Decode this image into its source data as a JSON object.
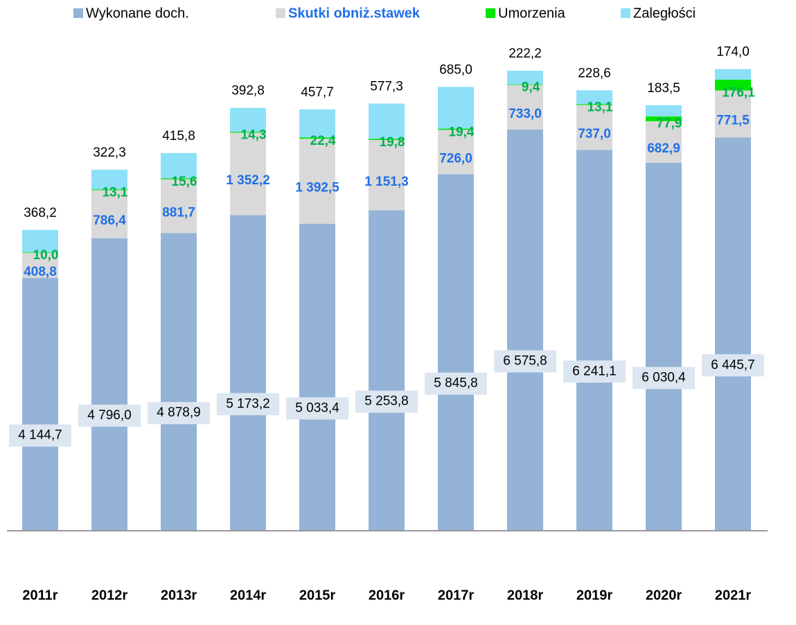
{
  "chart_data": {
    "type": "stacked_bar",
    "categories": [
      "2011r",
      "2012r",
      "2013r",
      "2014r",
      "2015r",
      "2016r",
      "2017r",
      "2018r",
      "2019r",
      "2020r",
      "2021r"
    ],
    "ylim": [
      0,
      8700
    ],
    "series": [
      {
        "name": "Wykonane doch.",
        "color": "#95b3d7",
        "values": [
          4144.7,
          4796.0,
          4878.9,
          5173.2,
          5033.4,
          5253.8,
          5845.8,
          6575.8,
          6241.1,
          6030.4,
          6445.7
        ],
        "value_labels": [
          "4 144,7",
          "4 796,0",
          "4 878,9",
          "5 173,2",
          "5 033,4",
          "5 253,8",
          "5 845,8",
          "6 575,8",
          "6 241,1",
          "6 030,4",
          "6 445,7"
        ]
      },
      {
        "name": "Skutki obniż.stawek",
        "color": "#d9d9d9",
        "values": [
          408.8,
          786.4,
          881.7,
          1352.2,
          1392.5,
          1151.3,
          726.0,
          733.0,
          737.0,
          682.9,
          771.5
        ],
        "value_labels": [
          "408,8",
          "786,4",
          "881,7",
          "1 352,2",
          "1 392,5",
          "1 151,3",
          "726,0",
          "733,0",
          "737,0",
          "682,9",
          "771,5"
        ]
      },
      {
        "name": "Umorzenia",
        "color": "#00e600",
        "values": [
          10.0,
          13.1,
          15.6,
          14.3,
          22.4,
          19.8,
          19.4,
          9.4,
          13.1,
          77.9,
          176.1
        ],
        "value_labels": [
          "10,0",
          "13,1",
          "15,6",
          "14,3",
          "22,4",
          "19,8",
          "19,4",
          "9,4",
          "13,1",
          "77,9",
          "176,1"
        ]
      },
      {
        "name": "Zaległości",
        "color": "#8ee0f8",
        "values": [
          368.2,
          322.3,
          415.8,
          392.8,
          457.7,
          577.3,
          685.0,
          222.2,
          228.6,
          183.5,
          174.0
        ],
        "value_labels": [
          "368,2",
          "322,3",
          "415,8",
          "392,8",
          "457,7",
          "577,3",
          "685,0",
          "222,2",
          "228,6",
          "183,5",
          "174,0"
        ]
      }
    ]
  }
}
